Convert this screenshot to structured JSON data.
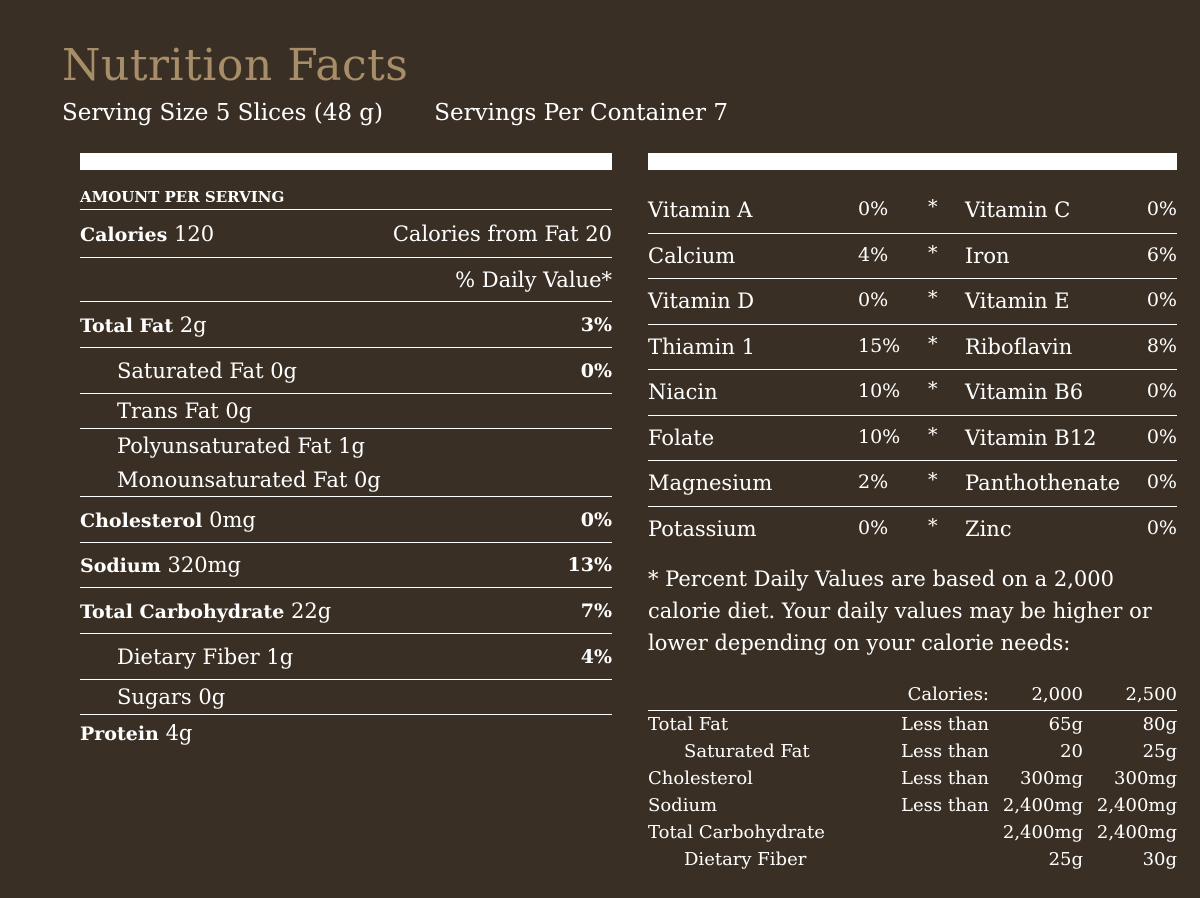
{
  "title": "Nutrition Facts",
  "serving_size": "Serving Size 5 Slices (48 g)",
  "servings_per_container": "Servings Per Container 7",
  "amount_per_serving": "AMOUNT PER SERVING",
  "calories": {
    "label": "Calories",
    "value": "120",
    "from_fat": "Calories from Fat 20"
  },
  "daily_value_header": "% Daily Value*",
  "nutrients": [
    {
      "label": "Total Fat",
      "amount": "2g",
      "pct": "3%"
    },
    {
      "label": "Saturated Fat 0g",
      "pct": "0%"
    },
    {
      "label": "Trans Fat 0g"
    },
    {
      "label": "Polyunsaturated Fat 1g"
    },
    {
      "label": "Monounsaturated Fat 0g"
    },
    {
      "label": "Cholesterol",
      "amount": "0mg",
      "pct": "0%"
    },
    {
      "label": "Sodium",
      "amount": "320mg",
      "pct": "13%"
    },
    {
      "label": "Total Carbohydrate",
      "amount": "22g",
      "pct": "7%"
    },
    {
      "label": "Dietary Fiber 1g",
      "pct": "4%"
    },
    {
      "label": "Sugars 0g"
    },
    {
      "label": "Protein",
      "amount": "4g"
    }
  ],
  "vitamins": [
    {
      "a": "Vitamin A",
      "ap": "0%",
      "b": "Vitamin C",
      "bp": "0%"
    },
    {
      "a": "Calcium",
      "ap": "4%",
      "b": "Iron",
      "bp": "6%"
    },
    {
      "a": "Vitamin D",
      "ap": "0%",
      "b": "Vitamin E",
      "bp": "0%"
    },
    {
      "a": "Thiamin 1",
      "ap": "15%",
      "b": "Riboflavin",
      "bp": "8%"
    },
    {
      "a": "Niacin",
      "ap": "10%",
      "b": "Vitamin B6",
      "bp": "0%"
    },
    {
      "a": "Folate",
      "ap": "10%",
      "b": "Vitamin B12",
      "bp": "0%"
    },
    {
      "a": "Magnesium",
      "ap": "2%",
      "b": "Panthothenate",
      "bp": "0%"
    },
    {
      "a": "Potassium",
      "ap": "0%",
      "b": "Zinc",
      "bp": "0%"
    }
  ],
  "separator": "*",
  "footnote": "* Percent Daily Values are based on a 2,000 calorie diet. Your daily values may be higher or lower depending on your calorie needs:",
  "dv_table": {
    "header": {
      "label": "Calories:",
      "v1": "2,000",
      "v2": "2,500"
    },
    "rows": [
      {
        "name": "Total Fat",
        "lt": "Less than",
        "v1": "65g",
        "v2": "80g"
      },
      {
        "name": "Saturated Fat",
        "lt": "Less than",
        "v1": "20",
        "v2": "25g"
      },
      {
        "name": "Cholesterol",
        "lt": "Less than",
        "v1": "300mg",
        "v2": "300mg"
      },
      {
        "name": "Sodium",
        "lt": "Less than",
        "v1": "2,400mg",
        "v2": "2,400mg"
      },
      {
        "name": "Total Carbohydrate",
        "lt": "",
        "v1": "2,400mg",
        "v2": "2,400mg"
      },
      {
        "name": "Dietary Fiber",
        "lt": "",
        "v1": "25g",
        "v2": "30g"
      }
    ]
  },
  "colors": {
    "background": "#3a2f24",
    "title": "#a88e68",
    "text": "#ffffff"
  }
}
